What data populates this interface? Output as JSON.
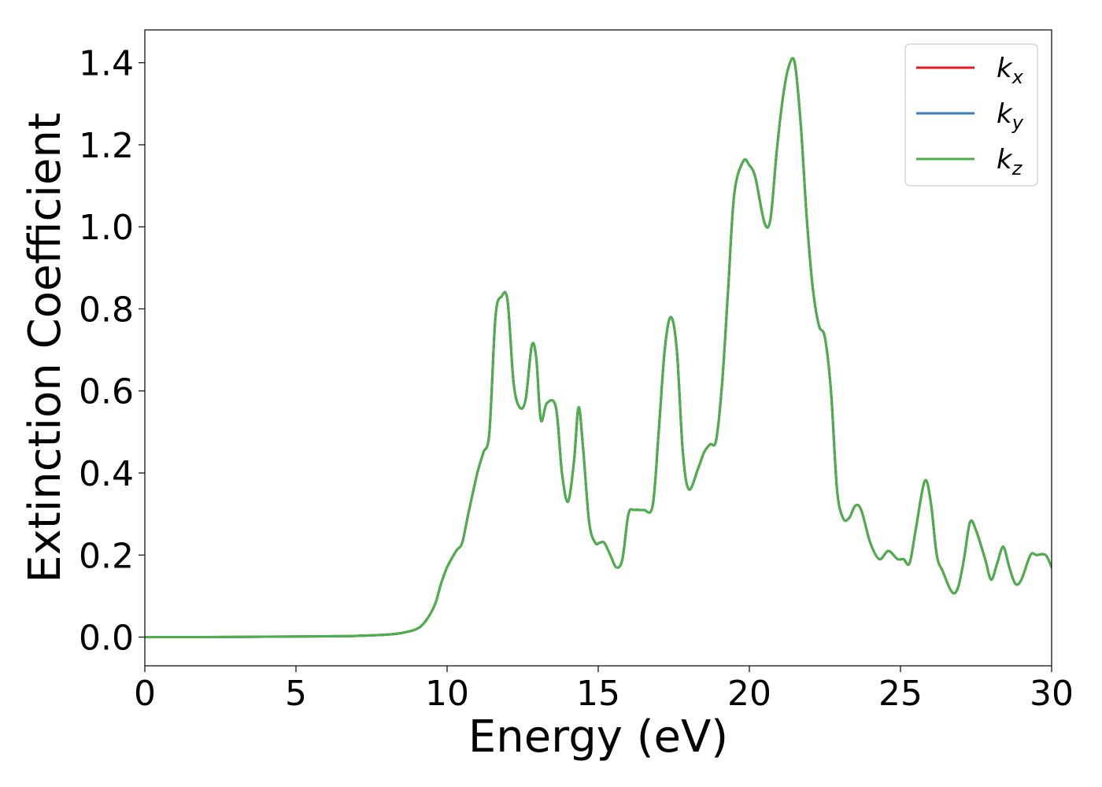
{
  "chart_data": {
    "type": "line",
    "title": "",
    "xlabel": "Energy (eV)",
    "ylabel": "Extinction Coefficient",
    "xlim": [
      0,
      30
    ],
    "ylim": [
      -0.07,
      1.48
    ],
    "xticks": [
      0,
      5,
      10,
      15,
      20,
      25,
      30
    ],
    "xtick_labels": [
      "0",
      "5",
      "10",
      "15",
      "20",
      "25",
      "30"
    ],
    "yticks": [
      0.0,
      0.2,
      0.4,
      0.6,
      0.8,
      1.0,
      1.2,
      1.4
    ],
    "ytick_labels": [
      "0.0",
      "0.2",
      "0.4",
      "0.6",
      "0.8",
      "1.0",
      "1.2",
      "1.4"
    ],
    "grid": false,
    "legend_position": "top-right",
    "x": [
      0,
      2,
      4,
      6,
      7,
      8,
      8.5,
      9,
      9.3,
      9.6,
      9.8,
      10,
      10.3,
      10.5,
      10.7,
      11,
      11.2,
      11.4,
      11.6,
      11.8,
      12,
      12.2,
      12.4,
      12.6,
      12.8,
      12.95,
      13.1,
      13.3,
      13.6,
      13.8,
      14,
      14.2,
      14.35,
      14.5,
      14.7,
      14.9,
      15.05,
      15.2,
      15.4,
      15.6,
      15.8,
      16.0,
      16.2,
      16.5,
      16.8,
      17.0,
      17.2,
      17.4,
      17.6,
      17.8,
      18.0,
      18.3,
      18.5,
      18.7,
      18.9,
      19.1,
      19.3,
      19.5,
      19.8,
      20.0,
      20.2,
      20.5,
      20.7,
      20.9,
      21.1,
      21.3,
      21.5,
      21.7,
      21.9,
      22.1,
      22.3,
      22.5,
      22.7,
      22.9,
      23.1,
      23.3,
      23.5,
      23.7,
      24.0,
      24.3,
      24.6,
      24.9,
      25.1,
      25.3,
      25.5,
      25.8,
      26.0,
      26.2,
      26.4,
      26.7,
      26.9,
      27.1,
      27.3,
      27.5,
      27.8,
      28.0,
      28.2,
      28.4,
      28.6,
      28.8,
      29.0,
      29.3,
      29.5,
      29.8,
      30.0
    ],
    "series": [
      {
        "name": "k_x",
        "color": "#e41a1c",
        "y": [
          0.0,
          0.0,
          0.001,
          0.002,
          0.003,
          0.006,
          0.01,
          0.02,
          0.04,
          0.08,
          0.13,
          0.17,
          0.21,
          0.23,
          0.3,
          0.4,
          0.45,
          0.5,
          0.78,
          0.83,
          0.82,
          0.62,
          0.56,
          0.58,
          0.71,
          0.68,
          0.53,
          0.57,
          0.56,
          0.4,
          0.33,
          0.43,
          0.56,
          0.46,
          0.28,
          0.23,
          0.23,
          0.23,
          0.2,
          0.17,
          0.19,
          0.3,
          0.31,
          0.31,
          0.32,
          0.5,
          0.7,
          0.78,
          0.7,
          0.45,
          0.36,
          0.41,
          0.45,
          0.47,
          0.48,
          0.62,
          0.85,
          1.08,
          1.16,
          1.15,
          1.12,
          1.01,
          1.02,
          1.18,
          1.31,
          1.39,
          1.4,
          1.25,
          1.02,
          0.85,
          0.76,
          0.73,
          0.6,
          0.36,
          0.29,
          0.29,
          0.32,
          0.31,
          0.23,
          0.19,
          0.21,
          0.19,
          0.19,
          0.18,
          0.26,
          0.38,
          0.33,
          0.2,
          0.16,
          0.11,
          0.12,
          0.19,
          0.28,
          0.26,
          0.19,
          0.14,
          0.18,
          0.22,
          0.17,
          0.13,
          0.14,
          0.2,
          0.2,
          0.2,
          0.17
        ]
      },
      {
        "name": "k_y",
        "color": "#377eb8",
        "y": [
          0.0,
          0.0,
          0.001,
          0.002,
          0.003,
          0.006,
          0.01,
          0.02,
          0.04,
          0.08,
          0.13,
          0.17,
          0.21,
          0.23,
          0.3,
          0.4,
          0.45,
          0.5,
          0.78,
          0.83,
          0.82,
          0.62,
          0.56,
          0.58,
          0.71,
          0.68,
          0.53,
          0.57,
          0.56,
          0.4,
          0.33,
          0.43,
          0.56,
          0.46,
          0.28,
          0.23,
          0.23,
          0.23,
          0.2,
          0.17,
          0.19,
          0.3,
          0.31,
          0.31,
          0.32,
          0.5,
          0.7,
          0.78,
          0.7,
          0.45,
          0.36,
          0.41,
          0.45,
          0.47,
          0.48,
          0.62,
          0.85,
          1.08,
          1.16,
          1.15,
          1.12,
          1.01,
          1.02,
          1.18,
          1.31,
          1.39,
          1.4,
          1.25,
          1.02,
          0.85,
          0.76,
          0.73,
          0.6,
          0.36,
          0.29,
          0.29,
          0.32,
          0.31,
          0.23,
          0.19,
          0.21,
          0.19,
          0.19,
          0.18,
          0.26,
          0.38,
          0.33,
          0.2,
          0.16,
          0.11,
          0.12,
          0.19,
          0.28,
          0.26,
          0.19,
          0.14,
          0.18,
          0.22,
          0.17,
          0.13,
          0.14,
          0.2,
          0.2,
          0.2,
          0.17
        ]
      },
      {
        "name": "k_z",
        "color": "#4daf4a",
        "y": [
          0.0,
          0.0,
          0.001,
          0.002,
          0.003,
          0.006,
          0.01,
          0.02,
          0.04,
          0.08,
          0.13,
          0.17,
          0.21,
          0.23,
          0.3,
          0.4,
          0.45,
          0.5,
          0.78,
          0.83,
          0.82,
          0.62,
          0.56,
          0.58,
          0.71,
          0.68,
          0.53,
          0.57,
          0.56,
          0.4,
          0.33,
          0.43,
          0.56,
          0.46,
          0.28,
          0.23,
          0.23,
          0.23,
          0.2,
          0.17,
          0.19,
          0.3,
          0.31,
          0.31,
          0.32,
          0.5,
          0.7,
          0.78,
          0.7,
          0.45,
          0.36,
          0.41,
          0.45,
          0.47,
          0.48,
          0.62,
          0.85,
          1.08,
          1.16,
          1.15,
          1.12,
          1.01,
          1.02,
          1.18,
          1.31,
          1.39,
          1.4,
          1.25,
          1.02,
          0.85,
          0.76,
          0.73,
          0.6,
          0.36,
          0.29,
          0.29,
          0.32,
          0.31,
          0.23,
          0.19,
          0.21,
          0.19,
          0.19,
          0.18,
          0.26,
          0.38,
          0.33,
          0.2,
          0.16,
          0.11,
          0.12,
          0.19,
          0.28,
          0.26,
          0.19,
          0.14,
          0.18,
          0.22,
          0.17,
          0.13,
          0.14,
          0.2,
          0.2,
          0.2,
          0.17
        ]
      }
    ],
    "legend": [
      {
        "base": "k",
        "sub": "x",
        "color": "#e41a1c"
      },
      {
        "base": "k",
        "sub": "y",
        "color": "#377eb8"
      },
      {
        "base": "k",
        "sub": "z",
        "color": "#4daf4a"
      }
    ]
  }
}
